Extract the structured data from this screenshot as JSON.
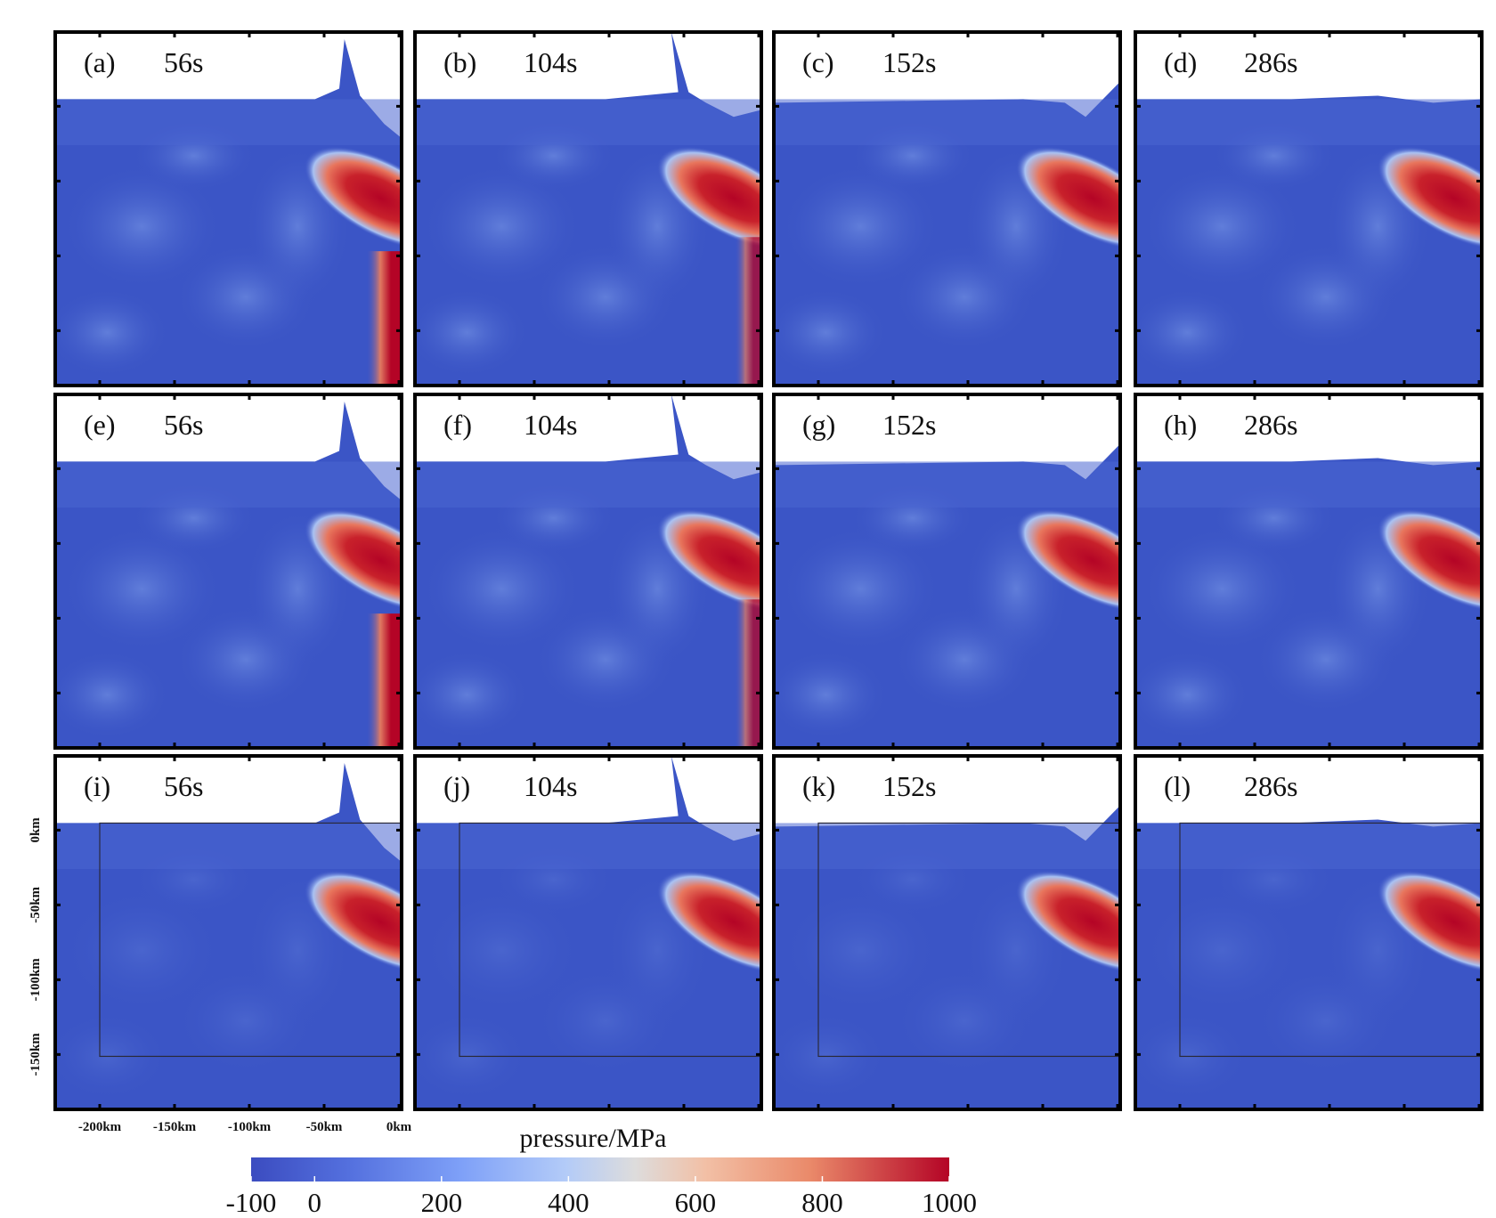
{
  "chart_data": {
    "type": "heatmap",
    "description_quantity": "pressure",
    "colorbar": {
      "title": "pressure/MPa",
      "range": [
        -100,
        1000
      ],
      "ticks": [
        -100,
        0,
        200,
        400,
        600,
        800,
        1000
      ],
      "tick_labels": [
        "-100",
        "0",
        "200",
        "400",
        "600",
        "800",
        "1000"
      ],
      "colors": [
        "#3b4cc0",
        "#6788ee",
        "#9abbff",
        "#c9d7f0",
        "#edd1c2",
        "#f7a889",
        "#e26952",
        "#b40426"
      ]
    },
    "x_axis": {
      "ticks": [
        -200,
        -150,
        -100,
        -50,
        0
      ],
      "tick_labels": [
        "-200km",
        "-150km",
        "-100km",
        "-50km",
        "0km"
      ]
    },
    "y_axis": {
      "ticks": [
        0,
        -50,
        -100,
        -150
      ],
      "tick_labels": [
        "0km",
        "-50km",
        "-100km",
        "-150km"
      ]
    },
    "panels": [
      {
        "label": "(a)",
        "time": "56s"
      },
      {
        "label": "(b)",
        "time": "104s"
      },
      {
        "label": "(c)",
        "time": "152s"
      },
      {
        "label": "(d)",
        "time": "286s"
      },
      {
        "label": "(e)",
        "time": "56s"
      },
      {
        "label": "(f)",
        "time": "104s"
      },
      {
        "label": "(g)",
        "time": "152s"
      },
      {
        "label": "(h)",
        "time": "286s"
      },
      {
        "label": "(i)",
        "time": "56s"
      },
      {
        "label": "(j)",
        "time": "104s"
      },
      {
        "label": "(k)",
        "time": "152s"
      },
      {
        "label": "(l)",
        "time": "286s"
      }
    ]
  }
}
